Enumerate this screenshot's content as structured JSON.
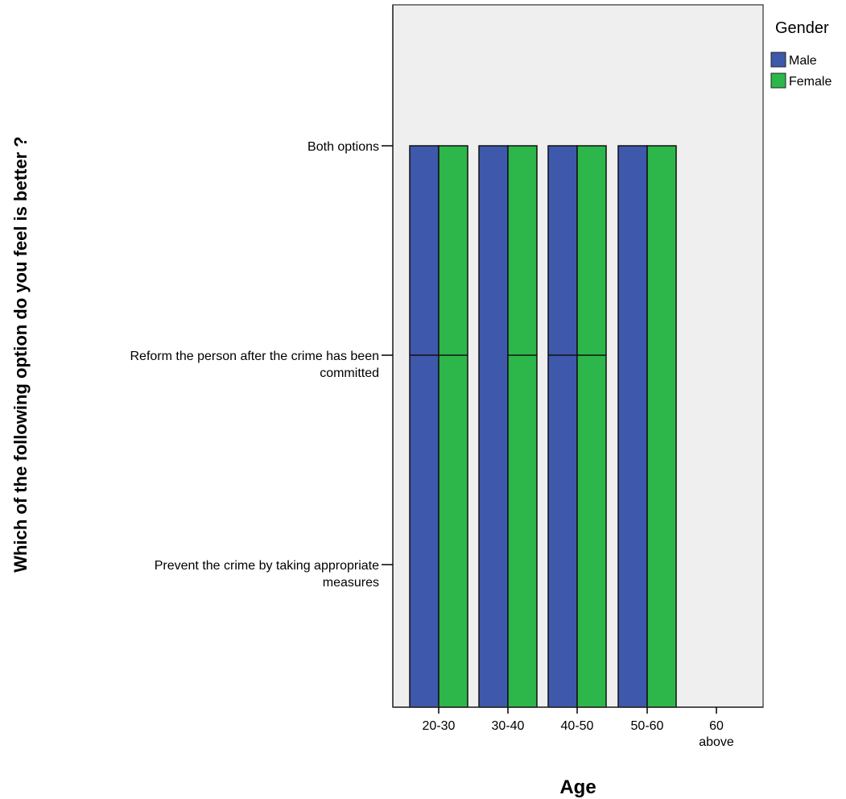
{
  "chart_data": {
    "type": "bar",
    "x_categories": [
      "20-30",
      "30-40",
      "40-50",
      "50-60",
      "60 above"
    ],
    "y_categories": [
      "Prevent the crime by taking appropriate measures",
      "Reform the person after the crime has been committed",
      "Both options"
    ],
    "y_tick_lines": [
      [
        "Prevent the crime by taking appropriate",
        "measures"
      ],
      [
        "Reform the person after the crime has been",
        "committed"
      ],
      [
        "Both options"
      ]
    ],
    "x_tick_lines": [
      [
        "20-30"
      ],
      [
        "30-40"
      ],
      [
        "40-50"
      ],
      [
        "50-60"
      ],
      [
        "60",
        "above"
      ]
    ],
    "xlabel": "Age",
    "ylabel": "Which of the following option do you feel is better ?",
    "legend": {
      "title": "Gender",
      "placement": "right"
    },
    "series": [
      {
        "name": "Male",
        "color": "#3e58ac",
        "values": [
          3,
          3,
          3,
          3,
          null
        ]
      },
      {
        "name": "Female",
        "color": "#2db74a",
        "values": [
          3,
          3,
          3,
          3,
          null
        ]
      }
    ],
    "bar_segment_boundaries": [
      {
        "category": "20-30",
        "series": "Male",
        "at": [
          2
        ]
      },
      {
        "category": "20-30",
        "series": "Female",
        "at": [
          2
        ]
      },
      {
        "category": "30-40",
        "series": "Male",
        "at": []
      },
      {
        "category": "30-40",
        "series": "Female",
        "at": [
          2
        ]
      },
      {
        "category": "40-50",
        "series": "Male",
        "at": [
          2
        ]
      },
      {
        "category": "40-50",
        "series": "Female",
        "at": [
          2
        ]
      },
      {
        "category": "50-60",
        "series": "Male",
        "at": []
      },
      {
        "category": "50-60",
        "series": "Female",
        "at": []
      }
    ],
    "plot_background": "#efefef",
    "grid": false
  }
}
